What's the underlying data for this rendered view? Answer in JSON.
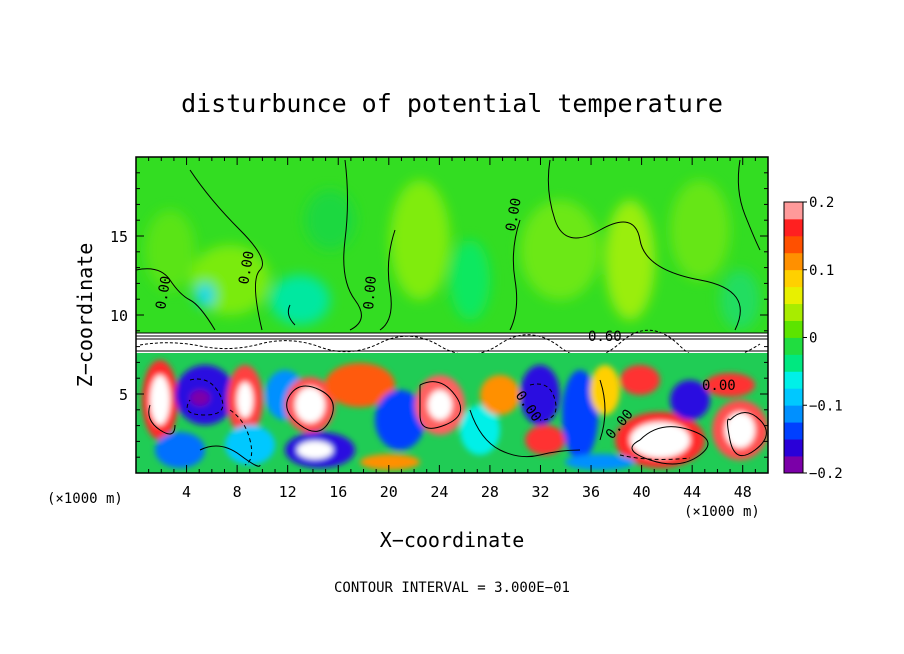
{
  "chart_data": {
    "type": "heatmap",
    "title": "disturbunce of potential temperature",
    "xlabel": "X−coordinate",
    "ylabel": "Z−coordinate",
    "x_unit_left": "(×1000 m)",
    "x_unit_right": "(×1000 m)",
    "xlim": [
      0,
      50
    ],
    "ylim": [
      0,
      20
    ],
    "x_ticks": [
      4,
      8,
      12,
      16,
      20,
      24,
      28,
      32,
      36,
      40,
      44,
      48
    ],
    "x_tick_labels": [
      "4",
      "8",
      "12",
      "16",
      "20",
      "24",
      "28",
      "32",
      "36",
      "40",
      "44",
      "48"
    ],
    "y_ticks": [
      5,
      10,
      15
    ],
    "y_tick_labels": [
      "5",
      "10",
      "15"
    ],
    "colorbar": {
      "range": [
        -0.2,
        0.2
      ],
      "tick_values": [
        0.2,
        0.1,
        0,
        -0.1,
        -0.2
      ],
      "tick_labels": [
        "0.2",
        "0.1",
        "0",
        "−0.1",
        "−0.2"
      ],
      "colors": [
        "#7b00a8",
        "#2a00d8",
        "#0040ff",
        "#0090ff",
        "#00c8ff",
        "#00f0e8",
        "#00e880",
        "#20dd40",
        "#5ce400",
        "#a8ec00",
        "#e8f000",
        "#ffd000",
        "#ff9000",
        "#ff5000",
        "#ff2020",
        "#ff9a9a"
      ]
    },
    "contour_labels": [
      "0.00",
      "0.00",
      "0.00",
      "0.00",
      "0.60",
      "0.00",
      "0.00",
      "0.00"
    ],
    "contour_interval_text": "CONTOUR INTERVAL = 3.000E−01",
    "regions": {
      "upper_layer": {
        "z_range": [
          9,
          20
        ],
        "typical_value": 0.0
      },
      "inversion_band": {
        "z_range": [
          7.6,
          9
        ],
        "typical_value": "> 0.2"
      },
      "turbulent_layer": {
        "z_range": [
          0,
          7.6
        ],
        "value_range": [
          -0.2,
          0.2
        ]
      }
    }
  }
}
